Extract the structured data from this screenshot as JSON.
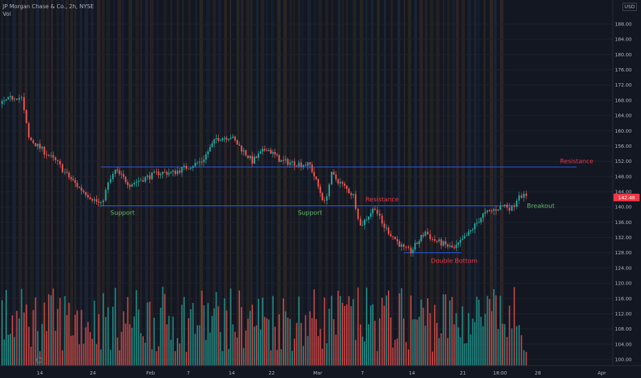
{
  "header": {
    "symbol_line": "JP Morgan Chase & Co., 2h, NYSE",
    "volume_label": "Vol",
    "currency": "USD"
  },
  "chart_data": {
    "type": "candlestick",
    "symbol": "JP Morgan Chase & Co.",
    "interval": "2h",
    "exchange": "NYSE",
    "y_axis": {
      "min": 98,
      "max": 192,
      "ticks": [
        100,
        104,
        108,
        112,
        116,
        120,
        124,
        128,
        132,
        136,
        140,
        144,
        148,
        152,
        156,
        160,
        164,
        168,
        172,
        176,
        180,
        184,
        188
      ]
    },
    "x_axis": {
      "ticks": [
        "14",
        "24",
        "Feb",
        "7",
        "14",
        "22",
        "Mar",
        "7",
        "14",
        "21",
        "18:00",
        "28",
        "Apr"
      ],
      "range_start": "2022-01-10",
      "range_end": "2022-04-05"
    },
    "last_price": "142.48",
    "last_price_value": 142.48,
    "colors": {
      "up": "#26a69a",
      "down": "#ef5350",
      "level_line": "#2962ff",
      "support_text": "#66bb6a",
      "resistance_text": "#f23645",
      "price_badge": "#f23645",
      "background": "#131722"
    },
    "price_series_close": [
      {
        "date": "2022-01-10",
        "close": 167.0
      },
      {
        "date": "2022-01-12",
        "close": 169.0
      },
      {
        "date": "2022-01-13",
        "close": 168.5
      },
      {
        "date": "2022-01-14",
        "close": 158.0
      },
      {
        "date": "2022-01-18",
        "close": 151.5
      },
      {
        "date": "2022-01-19",
        "close": 149.0
      },
      {
        "date": "2022-01-21",
        "close": 145.0
      },
      {
        "date": "2022-01-24",
        "close": 140.5
      },
      {
        "date": "2022-01-25",
        "close": 146.0
      },
      {
        "date": "2022-01-26",
        "close": 149.5
      },
      {
        "date": "2022-01-28",
        "close": 146.0
      },
      {
        "date": "2022-02-01",
        "close": 149.0
      },
      {
        "date": "2022-02-03",
        "close": 149.0
      },
      {
        "date": "2022-02-07",
        "close": 152.0
      },
      {
        "date": "2022-02-09",
        "close": 158.0
      },
      {
        "date": "2022-02-11",
        "close": 158.5
      },
      {
        "date": "2022-02-14",
        "close": 152.0
      },
      {
        "date": "2022-02-16",
        "close": 155.5
      },
      {
        "date": "2022-02-18",
        "close": 152.0
      },
      {
        "date": "2022-02-22",
        "close": 151.0
      },
      {
        "date": "2022-02-24",
        "close": 141.0
      },
      {
        "date": "2022-02-25",
        "close": 148.5
      },
      {
        "date": "2022-02-28",
        "close": 143.0
      },
      {
        "date": "2022-03-01",
        "close": 135.0
      },
      {
        "date": "2022-03-03",
        "close": 140.0
      },
      {
        "date": "2022-03-04",
        "close": 135.5
      },
      {
        "date": "2022-03-07",
        "close": 129.0
      },
      {
        "date": "2022-03-08",
        "close": 128.3
      },
      {
        "date": "2022-03-10",
        "close": 133.5
      },
      {
        "date": "2022-03-11",
        "close": 131.5
      },
      {
        "date": "2022-03-14",
        "close": 129.0
      },
      {
        "date": "2022-03-16",
        "close": 133.0
      },
      {
        "date": "2022-03-18",
        "close": 138.0
      },
      {
        "date": "2022-03-21",
        "close": 140.5
      },
      {
        "date": "2022-03-22",
        "close": 139.5
      },
      {
        "date": "2022-03-23",
        "close": 143.5
      },
      {
        "date": "2022-03-24",
        "close": 142.48
      }
    ],
    "volume_unit": "relative (0-1)",
    "levels": [
      {
        "name": "Resistance",
        "value": 150.5,
        "from": "2022-01-24",
        "to": "2022-03-31"
      },
      {
        "name": "Support",
        "value": 140.3,
        "from": "2022-01-24",
        "to": "2022-03-23"
      },
      {
        "name": "Double Bottom",
        "value": 128.0,
        "from": "2022-03-07",
        "to": "2022-03-15"
      }
    ],
    "annotations": [
      {
        "text": "Resistance",
        "kind": "resistance",
        "date": "2022-03-31",
        "value": 151.5
      },
      {
        "text": "Support",
        "kind": "support",
        "date": "2022-01-27",
        "value": 138.0
      },
      {
        "text": "Support",
        "kind": "support",
        "date": "2022-02-22",
        "value": 138.0
      },
      {
        "text": "Resistance",
        "kind": "resistance",
        "date": "2022-03-04",
        "value": 141.5
      },
      {
        "text": "Double Bottom",
        "kind": "resistance",
        "date": "2022-03-14",
        "value": 125.3
      },
      {
        "text": "Breakout",
        "kind": "support",
        "date": "2022-03-26",
        "value": 139.8
      }
    ]
  }
}
